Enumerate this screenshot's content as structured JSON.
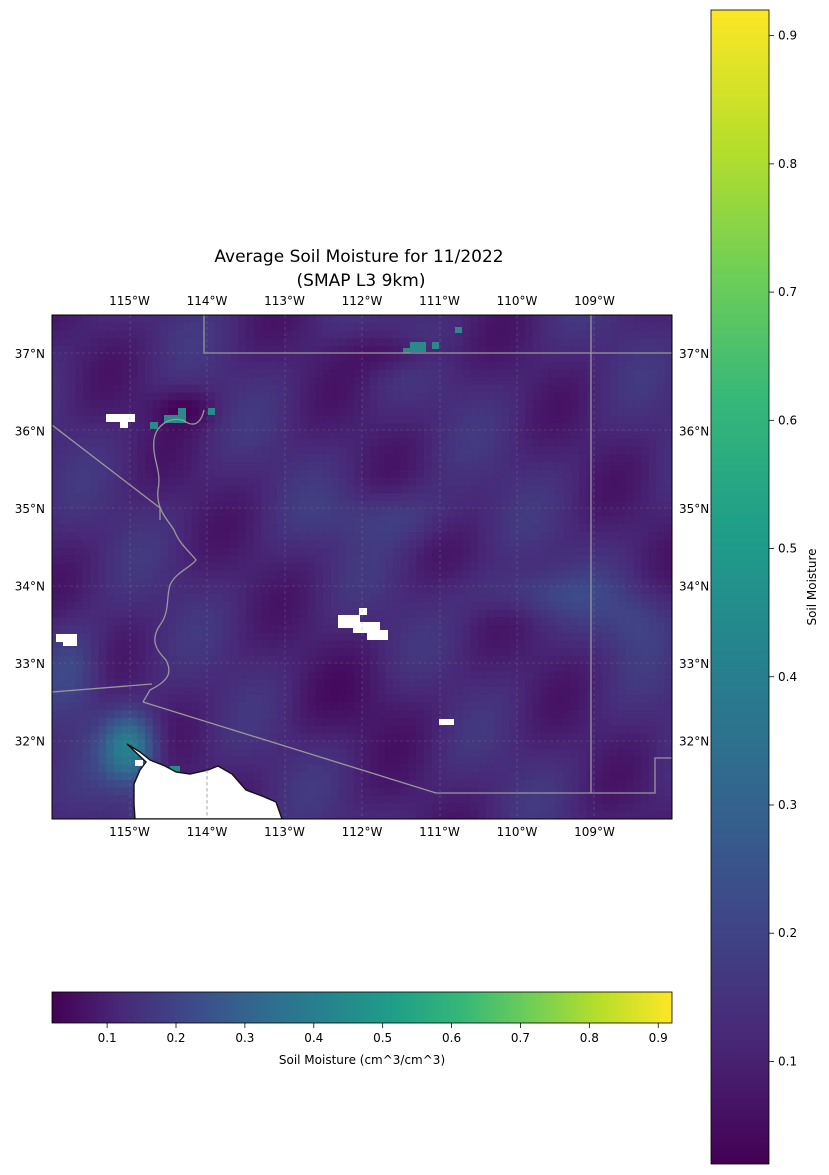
{
  "map": {
    "title_line1": "Average Soil Moisture for 11/2022",
    "title_line2": "(SMAP L3 9km)",
    "lon_ticks": [
      "115°W",
      "114°W",
      "113°W",
      "112°W",
      "111°W",
      "110°W",
      "109°W"
    ],
    "lat_ticks": [
      "37°N",
      "36°N",
      "35°N",
      "34°N",
      "33°N",
      "32°N"
    ],
    "bounds": {
      "lon_min": -116.0,
      "lon_max": -108.0,
      "lat_min": 31.0,
      "lat_max": 37.5
    },
    "palette": [
      "#440154",
      "#482878",
      "#3e4989",
      "#31688e",
      "#26828e",
      "#1f9e89",
      "#35b779",
      "#6ece58",
      "#b5de2b",
      "#fde725"
    ]
  },
  "colorbar_horizontal": {
    "label": "Soil Moisture (cm^3/cm^3)",
    "range": [
      0.02,
      0.92
    ],
    "ticks": [
      "0.1",
      "0.2",
      "0.3",
      "0.4",
      "0.5",
      "0.6",
      "0.7",
      "0.8",
      "0.9"
    ]
  },
  "colorbar_vertical": {
    "label": "Soil Moisture",
    "range": [
      0.02,
      0.92
    ],
    "ticks": [
      "0.1",
      "0.2",
      "0.3",
      "0.4",
      "0.5",
      "0.6",
      "0.7",
      "0.8",
      "0.9"
    ]
  }
}
